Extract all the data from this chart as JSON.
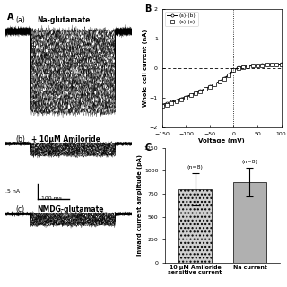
{
  "panel_B": {
    "xlabel": "Voltage (mV)",
    "ylabel": "Whole-cell current (nA)",
    "xlim": [
      -150,
      100
    ],
    "ylim": [
      -2,
      2
    ],
    "xticks": [
      -150,
      -100,
      -50,
      0,
      50,
      100
    ],
    "yticks": [
      -2,
      -1,
      0,
      1,
      2
    ],
    "legend": [
      "(a)-(b)",
      "(a)-(c)"
    ],
    "voltages": [
      -150,
      -140,
      -130,
      -120,
      -110,
      -100,
      -90,
      -80,
      -70,
      -60,
      -50,
      -40,
      -30,
      -20,
      -10,
      0,
      10,
      20,
      30,
      40,
      50,
      60,
      70,
      80,
      90,
      100
    ],
    "current_ab": [
      -1.22,
      -1.17,
      -1.12,
      -1.07,
      -1.01,
      -0.96,
      -0.89,
      -0.83,
      -0.76,
      -0.69,
      -0.61,
      -0.53,
      -0.44,
      -0.34,
      -0.22,
      -0.05,
      0.02,
      0.05,
      0.07,
      0.09,
      0.1,
      0.11,
      0.12,
      0.13,
      0.13,
      0.14
    ],
    "current_ac": [
      -1.28,
      -1.22,
      -1.16,
      -1.1,
      -1.04,
      -0.98,
      -0.91,
      -0.84,
      -0.77,
      -0.7,
      -0.62,
      -0.54,
      -0.45,
      -0.35,
      -0.24,
      -0.07,
      0.01,
      0.04,
      0.06,
      0.08,
      0.09,
      0.1,
      0.11,
      0.12,
      0.12,
      0.13
    ]
  },
  "panel_C": {
    "ylabel": "Inward current amplitude (pA)",
    "categories": [
      "10 μM Amiloride\nsensitive current",
      "Na current"
    ],
    "values": [
      800,
      880
    ],
    "errors": [
      175,
      155
    ],
    "n_labels": [
      "(n=8)",
      "(n=8)"
    ],
    "ylim": [
      0,
      1250
    ],
    "yticks": [
      0,
      250,
      500,
      750,
      1000,
      1250
    ],
    "bar_colors": [
      "#d0d0d0",
      "#b0b0b0"
    ],
    "bar_hatches": [
      "....",
      ""
    ]
  },
  "panel_A": {
    "scalebar_nA": ".5 nA",
    "scalebar_ms": "100 ms"
  }
}
